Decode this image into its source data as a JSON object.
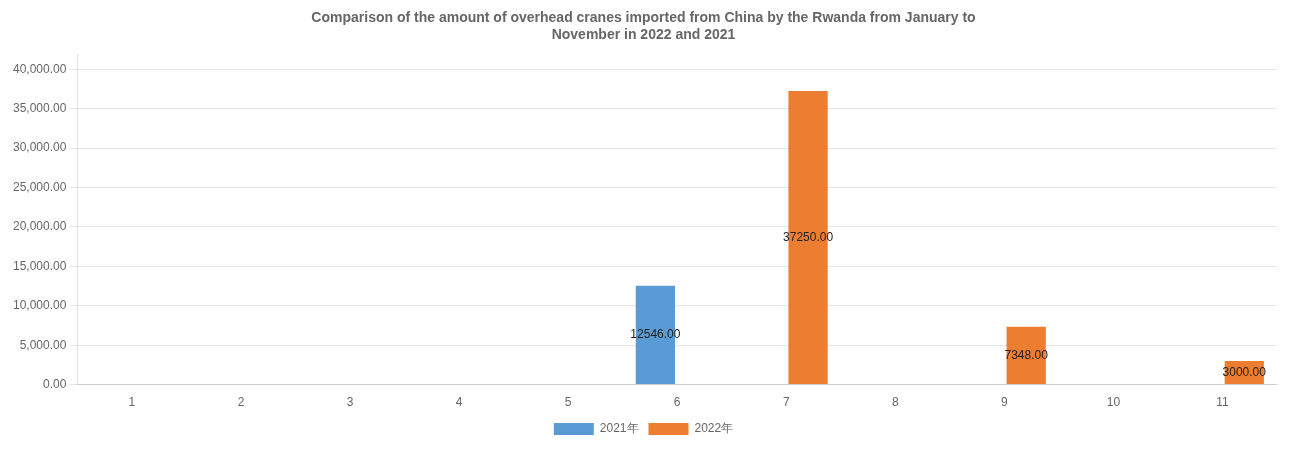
{
  "chart_data": {
    "type": "bar",
    "title": "Comparison of the amount of overhead cranes imported from China by the Rwanda from January to\nNovember in 2022 and 2021",
    "categories": [
      1,
      2,
      3,
      4,
      5,
      6,
      7,
      8,
      9,
      10,
      11
    ],
    "series": [
      {
        "name": "2021年",
        "color": "#5b9bd5",
        "values": [
          0,
          0,
          0,
          0,
          0,
          12546,
          0,
          0,
          0,
          0,
          0
        ],
        "value_labels": [
          null,
          null,
          null,
          null,
          null,
          "12546.00",
          null,
          null,
          null,
          null,
          null
        ]
      },
      {
        "name": "2022年",
        "color": "#ed7d31",
        "values": [
          0,
          0,
          0,
          0,
          0,
          0,
          37250,
          0,
          7348,
          0,
          3000
        ],
        "value_labels": [
          null,
          null,
          null,
          null,
          null,
          null,
          "37250.00",
          null,
          "7348.00",
          null,
          "3000.00"
        ]
      }
    ],
    "ylim": [
      0,
      42000
    ],
    "yticks": [
      {
        "value": 0,
        "label": "0.00"
      },
      {
        "value": 5000,
        "label": "5,000.00"
      },
      {
        "value": 10000,
        "label": "10,000.00"
      },
      {
        "value": 15000,
        "label": "15,000.00"
      },
      {
        "value": 20000,
        "label": "20,000.00"
      },
      {
        "value": 25000,
        "label": "25,000.00"
      },
      {
        "value": 30000,
        "label": "30,000.00"
      },
      {
        "value": 35000,
        "label": "35,000.00"
      },
      {
        "value": 40000,
        "label": "40,000.00"
      }
    ],
    "grid": true,
    "legend": "bottom",
    "data_labels": true
  }
}
